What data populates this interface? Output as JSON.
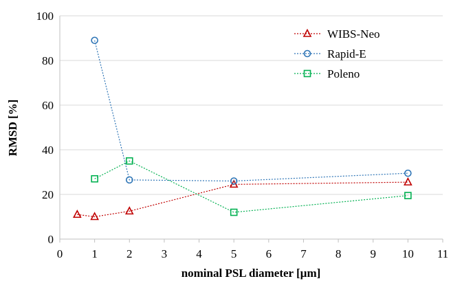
{
  "chart_data": {
    "type": "line",
    "xlabel": "nominal PSL diameter [µm]",
    "ylabel": "RMSD [%]",
    "xlim": [
      0,
      11
    ],
    "ylim": [
      0,
      100
    ],
    "xticks": [
      0,
      1,
      2,
      3,
      4,
      5,
      6,
      7,
      8,
      9,
      10,
      11
    ],
    "yticks": [
      0,
      20,
      40,
      60,
      80,
      100
    ],
    "grid": "horizontal",
    "legend_position": "top-right",
    "series": [
      {
        "name": "WIBS-Neo",
        "color": "#c00000",
        "marker": "triangle",
        "line_style": "dotted",
        "x": [
          0.5,
          1,
          2,
          5,
          10
        ],
        "y": [
          11,
          10,
          12.5,
          24.5,
          25.5
        ]
      },
      {
        "name": "Rapid-E",
        "color": "#2e75b6",
        "marker": "circle",
        "line_style": "dotted",
        "x": [
          1,
          2,
          5,
          10
        ],
        "y": [
          89,
          26.5,
          26,
          29.5
        ]
      },
      {
        "name": "Poleno",
        "color": "#00b050",
        "marker": "square",
        "line_style": "dotted",
        "x": [
          1,
          2,
          5,
          10
        ],
        "y": [
          27,
          35,
          12,
          19.5
        ]
      }
    ]
  }
}
